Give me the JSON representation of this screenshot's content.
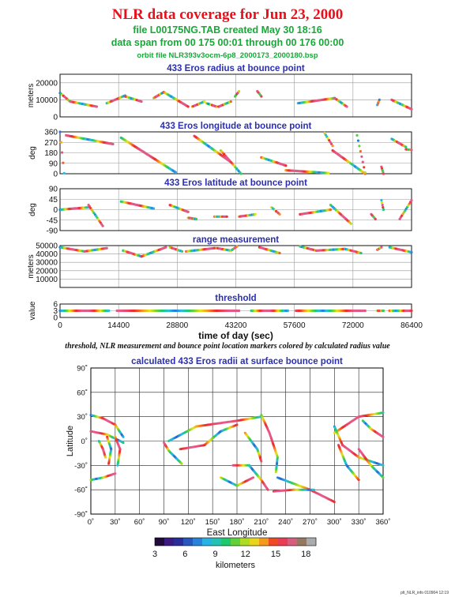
{
  "header": {
    "title": "NLR data coverage for Jun 23, 2000",
    "file_line": "file L00175NG.TAB created May 30 18:16",
    "span_line": "data span from 00 175 00:01 through 00 176 00:00",
    "orbit_line": "orbit file NLR393v3ocm-6p8_2000173_2000180.bsp"
  },
  "caption": "threshold, NLR measurement and bounce point location markers colored by calculated radius value",
  "footer": "plt_NLR_info 010904 12:19",
  "chart_data": [
    {
      "type": "scatter",
      "title": "433 Eros radius at bounce point",
      "ylabel": "meters",
      "ylim": [
        0,
        25000
      ],
      "yticks": [
        0,
        10000,
        20000
      ],
      "xlim": [
        0,
        86400
      ],
      "segments": [
        {
          "x": [
            0,
            2500
          ],
          "y": [
            14000,
            9000
          ]
        },
        {
          "x": [
            2500,
            9000
          ],
          "y": [
            9000,
            6000
          ]
        },
        {
          "x": [
            11500,
            16000
          ],
          "y": [
            8000,
            12500
          ]
        },
        {
          "x": [
            16000,
            20000
          ],
          "y": [
            12000,
            9000
          ]
        },
        {
          "x": [
            23000,
            25500
          ],
          "y": [
            11000,
            14500
          ]
        },
        {
          "x": [
            25500,
            31500
          ],
          "y": [
            14500,
            6000
          ]
        },
        {
          "x": [
            32500,
            35500
          ],
          "y": [
            6000,
            9000
          ]
        },
        {
          "x": [
            36000,
            38500
          ],
          "y": [
            8000,
            6000
          ]
        },
        {
          "x": [
            39000,
            42000
          ],
          "y": [
            6000,
            9000
          ]
        },
        {
          "x": [
            43000,
            44000
          ],
          "y": [
            12000,
            15000
          ]
        },
        {
          "x": [
            48500,
            49500
          ],
          "y": [
            15000,
            12000
          ]
        },
        {
          "x": [
            58500,
            67500
          ],
          "y": [
            8000,
            11000
          ]
        },
        {
          "x": [
            67500,
            70500
          ],
          "y": [
            11000,
            6000
          ]
        },
        {
          "x": [
            78000,
            78500
          ],
          "y": [
            7000,
            10000
          ]
        },
        {
          "x": [
            81500,
            86400
          ],
          "y": [
            10000,
            4500
          ]
        }
      ]
    },
    {
      "type": "scatter",
      "title": "433 Eros longitude at bounce point",
      "ylabel": "deg",
      "ylim": [
        0,
        360
      ],
      "yticks": [
        0,
        90,
        180,
        270,
        360
      ],
      "xlim": [
        0,
        86400
      ],
      "segments": [
        {
          "x": [
            0,
            1000
          ],
          "y": [
            360,
            5
          ]
        },
        {
          "x": [
            1500,
            13000
          ],
          "y": [
            330,
            255
          ]
        },
        {
          "x": [
            15000,
            28500
          ],
          "y": [
            310,
            10
          ]
        },
        {
          "x": [
            33000,
            42000
          ],
          "y": [
            325,
            100
          ]
        },
        {
          "x": [
            39500,
            44500
          ],
          "y": [
            200,
            0
          ]
        },
        {
          "x": [
            49500,
            55500
          ],
          "y": [
            140,
            70
          ]
        },
        {
          "x": [
            55500,
            66000
          ],
          "y": [
            30,
            5
          ]
        },
        {
          "x": [
            65000,
            67000
          ],
          "y": [
            350,
            240
          ]
        },
        {
          "x": [
            67000,
            75000
          ],
          "y": [
            200,
            0
          ]
        },
        {
          "x": [
            73000,
            75000
          ],
          "y": [
            330,
            10
          ]
        },
        {
          "x": [
            79000,
            79500
          ],
          "y": [
            60,
            0
          ]
        },
        {
          "x": [
            81500,
            85000
          ],
          "y": [
            300,
            230
          ]
        },
        {
          "x": [
            85000,
            86400
          ],
          "y": [
            210,
            205
          ]
        }
      ]
    },
    {
      "type": "scatter",
      "title": "433 Eros latitude at bounce point",
      "ylabel": "deg",
      "ylim": [
        -90,
        90
      ],
      "yticks": [
        -90,
        -45,
        0,
        45,
        90
      ],
      "xlim": [
        0,
        86400
      ],
      "segments": [
        {
          "x": [
            0,
            7000
          ],
          "y": [
            0,
            10
          ]
        },
        {
          "x": [
            7000,
            10500
          ],
          "y": [
            20,
            -70
          ]
        },
        {
          "x": [
            15000,
            23000
          ],
          "y": [
            35,
            5
          ]
        },
        {
          "x": [
            27000,
            31500
          ],
          "y": [
            20,
            -10
          ]
        },
        {
          "x": [
            31500,
            33500
          ],
          "y": [
            -35,
            -40
          ]
        },
        {
          "x": [
            38000,
            41000
          ],
          "y": [
            -30,
            -30
          ]
        },
        {
          "x": [
            44000,
            48000
          ],
          "y": [
            -30,
            -20
          ]
        },
        {
          "x": [
            52000,
            54000
          ],
          "y": [
            10,
            -20
          ]
        },
        {
          "x": [
            59000,
            66500
          ],
          "y": [
            -20,
            0
          ]
        },
        {
          "x": [
            66500,
            71500
          ],
          "y": [
            20,
            -60
          ]
        },
        {
          "x": [
            76500,
            77500
          ],
          "y": [
            -20,
            -40
          ]
        },
        {
          "x": [
            79000,
            79500
          ],
          "y": [
            40,
            0
          ]
        },
        {
          "x": [
            83500,
            86400
          ],
          "y": [
            -40,
            40
          ]
        }
      ]
    },
    {
      "type": "scatter",
      "title": "range measurement",
      "ylabel": "meters",
      "ylim": [
        0,
        50000
      ],
      "yticks": [
        10000,
        20000,
        30000,
        40000,
        50000
      ],
      "xlim": [
        0,
        86400
      ],
      "segments": [
        {
          "x": [
            0,
            6000
          ],
          "y": [
            48000,
            43000
          ]
        },
        {
          "x": [
            6000,
            11500
          ],
          "y": [
            43000,
            47000
          ]
        },
        {
          "x": [
            15500,
            20000
          ],
          "y": [
            44000,
            37000
          ]
        },
        {
          "x": [
            20000,
            26000
          ],
          "y": [
            37000,
            48000
          ]
        },
        {
          "x": [
            27000,
            30000
          ],
          "y": [
            48000,
            43000
          ]
        },
        {
          "x": [
            31000,
            38000
          ],
          "y": [
            43000,
            47000
          ]
        },
        {
          "x": [
            38500,
            42000
          ],
          "y": [
            47000,
            44000
          ]
        },
        {
          "x": [
            42000,
            43500
          ],
          "y": [
            44000,
            49000
          ]
        },
        {
          "x": [
            49000,
            54000
          ],
          "y": [
            48000,
            41000
          ]
        },
        {
          "x": [
            59000,
            63000
          ],
          "y": [
            49000,
            44000
          ]
        },
        {
          "x": [
            63000,
            70000
          ],
          "y": [
            44000,
            46000
          ]
        },
        {
          "x": [
            70000,
            74000
          ],
          "y": [
            46000,
            41000
          ]
        },
        {
          "x": [
            78000,
            79000
          ],
          "y": [
            45000,
            48000
          ]
        },
        {
          "x": [
            81000,
            86400
          ],
          "y": [
            48000,
            42000
          ]
        }
      ]
    },
    {
      "type": "scatter",
      "title": "threshold",
      "ylabel": "value",
      "ylim": [
        0,
        6
      ],
      "yticks": [
        0,
        3,
        6
      ],
      "xlim": [
        0,
        86400
      ],
      "xticks": [
        0,
        14400,
        28800,
        43200,
        57600,
        72000,
        86400
      ],
      "xlabel": "time of day (sec)",
      "segments": [
        {
          "x": [
            0,
            12000
          ],
          "y": [
            3,
            3
          ]
        },
        {
          "x": [
            14000,
            44000
          ],
          "y": [
            3,
            3
          ]
        },
        {
          "x": [
            47000,
            56000
          ],
          "y": [
            3,
            3
          ]
        },
        {
          "x": [
            58000,
            75000
          ],
          "y": [
            3,
            3
          ]
        },
        {
          "x": [
            78000,
            79500
          ],
          "y": [
            3,
            3
          ]
        },
        {
          "x": [
            81000,
            86400
          ],
          "y": [
            3,
            3
          ]
        }
      ]
    },
    {
      "type": "scatter",
      "title": "calculated 433 Eros radii at surface bounce point",
      "xlabel": "East Longitude",
      "ylabel": "Latitude",
      "xlim": [
        0,
        360
      ],
      "ylim": [
        -90,
        90
      ],
      "xticks": [
        "0˚",
        "30˚",
        "60˚",
        "90˚",
        "120˚",
        "150˚",
        "180˚",
        "210˚",
        "240˚",
        "270˚",
        "300˚",
        "330˚",
        "360˚"
      ],
      "yticks": [
        "-90˚",
        "-60˚",
        "-30˚",
        "0˚",
        "30˚",
        "60˚",
        "90˚"
      ],
      "tracks": [
        {
          "lon": [
            0,
            15,
            30,
            40
          ],
          "lat": [
            32,
            28,
            20,
            5
          ]
        },
        {
          "lon": [
            0,
            20,
            40
          ],
          "lat": [
            12,
            8,
            -2
          ]
        },
        {
          "lon": [
            0,
            15,
            30
          ],
          "lat": [
            -48,
            -45,
            -40
          ]
        },
        {
          "lon": [
            30,
            36,
            33
          ],
          "lat": [
            5,
            -10,
            -30
          ]
        },
        {
          "lon": [
            20,
            25,
            22
          ],
          "lat": [
            5,
            -10,
            -28
          ]
        },
        {
          "lon": [
            10,
            15,
            18
          ],
          "lat": [
            0,
            -10,
            -20
          ]
        },
        {
          "lon": [
            90,
            96,
            112
          ],
          "lat": [
            -2,
            -12,
            -28
          ]
        },
        {
          "lon": [
            96,
            130,
            180,
            210
          ],
          "lat": [
            0,
            18,
            25,
            30
          ]
        },
        {
          "lon": [
            110,
            140,
            160,
            180
          ],
          "lat": [
            -10,
            -5,
            12,
            20
          ]
        },
        {
          "lon": [
            190,
            205,
            210
          ],
          "lat": [
            10,
            -10,
            -25
          ]
        },
        {
          "lon": [
            210,
            220,
            230,
            228
          ],
          "lat": [
            32,
            10,
            -20,
            -38
          ]
        },
        {
          "lon": [
            175,
            195,
            210,
            218
          ],
          "lat": [
            -30,
            -30,
            -48,
            -60
          ]
        },
        {
          "lon": [
            230,
            270,
            300
          ],
          "lat": [
            -45,
            -60,
            -75
          ]
        },
        {
          "lon": [
            225,
            250,
            275
          ],
          "lat": [
            -62,
            -60,
            -60
          ]
        },
        {
          "lon": [
            160,
            180,
            200
          ],
          "lat": [
            -45,
            -55,
            -45
          ]
        },
        {
          "lon": [
            300,
            330,
            360
          ],
          "lat": [
            10,
            30,
            35
          ]
        },
        {
          "lon": [
            305,
            315,
            330
          ],
          "lat": [
            -5,
            -30,
            -48
          ]
        },
        {
          "lon": [
            300,
            310,
            330,
            360
          ],
          "lat": [
            18,
            -5,
            -20,
            -30
          ]
        },
        {
          "lon": [
            330,
            345,
            360
          ],
          "lat": [
            -10,
            -30,
            -45
          ]
        },
        {
          "lon": [
            335,
            345,
            360
          ],
          "lat": [
            25,
            15,
            5
          ]
        }
      ],
      "colorbar": {
        "label": "kilometers",
        "min": 3,
        "max": 19,
        "ticks": [
          3,
          6,
          9,
          12,
          15,
          18
        ]
      }
    }
  ]
}
